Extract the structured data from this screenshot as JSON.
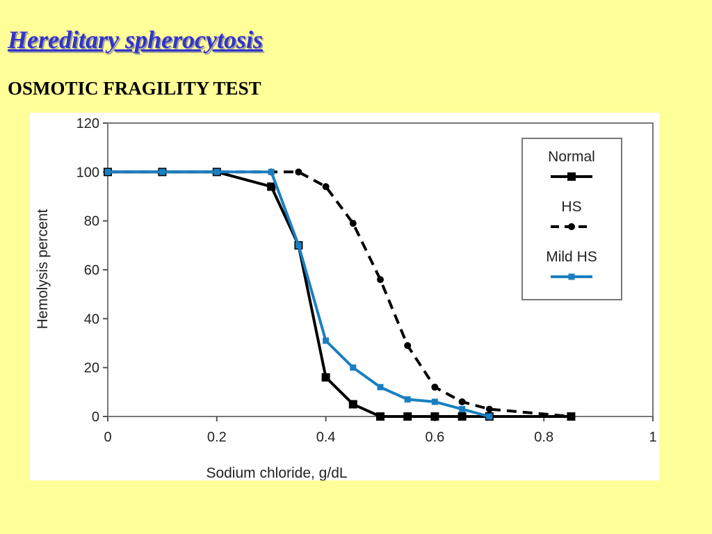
{
  "slide": {
    "title": "Hereditary spherocytosis",
    "subtitle": "OSMOTIC FRAGILITY TEST"
  },
  "chart_data": {
    "type": "line",
    "xlabel": "Sodium chloride, g/dL",
    "ylabel": "Hemolysis percent",
    "xlim": [
      0,
      1
    ],
    "ylim": [
      0,
      120
    ],
    "x_ticks": [
      "0",
      "0.2",
      "0.4",
      "0.6",
      "0.8",
      "1"
    ],
    "y_ticks": [
      "0",
      "20",
      "40",
      "60",
      "80",
      "100",
      "120"
    ],
    "grid": false,
    "legend_position": "top-right",
    "series": [
      {
        "name": "Normal",
        "color": "#000000",
        "line_style": "solid",
        "marker": "square",
        "x": [
          0,
          0.1,
          0.2,
          0.3,
          0.35,
          0.4,
          0.45,
          0.5,
          0.55,
          0.6,
          0.65,
          0.7,
          0.85
        ],
        "y": [
          100,
          100,
          100,
          94,
          70,
          16,
          5,
          0,
          0,
          0,
          0,
          0,
          0
        ]
      },
      {
        "name": "HS",
        "color": "#000000",
        "line_style": "dashed",
        "marker": "circle",
        "x": [
          0,
          0.1,
          0.2,
          0.3,
          0.35,
          0.4,
          0.45,
          0.5,
          0.55,
          0.6,
          0.65,
          0.7,
          0.85
        ],
        "y": [
          100,
          100,
          100,
          100,
          100,
          94,
          79,
          56,
          29,
          12,
          6,
          3,
          0
        ]
      },
      {
        "name": "Mild HS",
        "color": "#1a7fc0",
        "line_style": "solid",
        "marker": "diamond",
        "x": [
          0,
          0.1,
          0.2,
          0.3,
          0.35,
          0.4,
          0.45,
          0.5,
          0.55,
          0.6,
          0.65,
          0.7
        ],
        "y": [
          100,
          100,
          100,
          100,
          70,
          31,
          20,
          12,
          7,
          6,
          3,
          0
        ]
      }
    ]
  }
}
